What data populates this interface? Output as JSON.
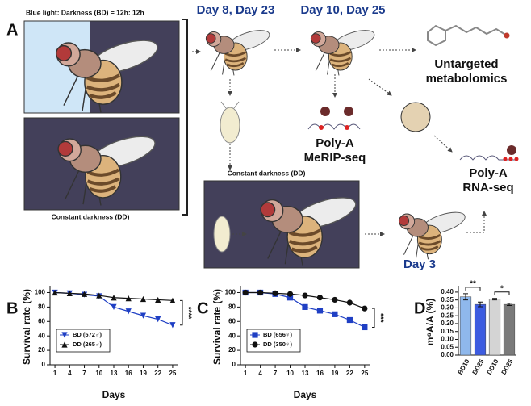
{
  "diagram": {
    "panel_label": "A",
    "bd_condition": "Blue light: Darkness (BD) = 12h: 12h",
    "dd_condition_left": "Constant darkness (DD)",
    "dd_condition_middle": "Constant darkness (DD)",
    "day_early": "Day 8,  Day 23",
    "day_late": "Day 10,  Day 25",
    "day_pupa": "Day 3",
    "metabolomics_label": [
      "Untargeted",
      "metabolomics"
    ],
    "merip_label": [
      "Poly-A",
      "MeRIP-seq"
    ],
    "rnaseq_label": [
      "Poly-A",
      "RNA-seq"
    ]
  },
  "chart_data": [
    {
      "type": "line",
      "panel": "B",
      "xlabel": "Days",
      "ylabel": "Survival rate (%)",
      "x": [
        1,
        4,
        7,
        10,
        13,
        16,
        19,
        22,
        25
      ],
      "xlim": [
        0,
        26
      ],
      "xticks": [
        1,
        4,
        7,
        10,
        13,
        16,
        19,
        22,
        25
      ],
      "ylim": [
        0,
        105
      ],
      "yticks": [
        0,
        20,
        40,
        60,
        80,
        100
      ],
      "legend": "lower left",
      "annotation": "****",
      "series": [
        {
          "name": "BD (572♂)",
          "color": "#1f3fc4",
          "marker": "triangle-down",
          "values": [
            100,
            99,
            97,
            95,
            80,
            74,
            68,
            63,
            55
          ]
        },
        {
          "name": "DD (265♂)",
          "color": "#111111",
          "marker": "triangle-up",
          "values": [
            100,
            99,
            98,
            96,
            93,
            92,
            91,
            90,
            89
          ]
        }
      ]
    },
    {
      "type": "line",
      "panel": "C",
      "xlabel": "Days",
      "ylabel": "Survival rate (%)",
      "x": [
        1,
        4,
        7,
        10,
        13,
        16,
        19,
        22,
        25
      ],
      "xlim": [
        0,
        26
      ],
      "xticks": [
        1,
        4,
        7,
        10,
        13,
        16,
        19,
        22,
        25
      ],
      "ylim": [
        0,
        105
      ],
      "yticks": [
        0,
        20,
        40,
        60,
        80,
        100
      ],
      "legend": "lower left",
      "annotation": "***",
      "series": [
        {
          "name": "BD (656♀)",
          "color": "#1f3fc4",
          "marker": "square",
          "values": [
            100,
            100,
            98,
            93,
            80,
            75,
            70,
            62,
            52
          ]
        },
        {
          "name": "DD (350♀)",
          "color": "#111111",
          "marker": "circle",
          "values": [
            100,
            100,
            99,
            98,
            96,
            93,
            90,
            86,
            78
          ]
        }
      ]
    },
    {
      "type": "bar",
      "panel": "D",
      "ylabel": "m⁶A/A (%)",
      "categories": [
        "BD10",
        "BD25",
        "DD10",
        "DD25"
      ],
      "values": [
        0.37,
        0.322,
        0.355,
        0.322
      ],
      "errors": [
        0.02,
        0.015,
        0.005,
        0.007
      ],
      "colors": [
        "#8fb8ec",
        "#3d5ce0",
        "#d4d4d4",
        "#7a7a7a"
      ],
      "ylim": [
        0,
        0.42
      ],
      "yticks": [
        {
          "value": 0,
          "label": "0.00"
        },
        {
          "value": 0.05,
          "label": "0.05"
        },
        {
          "value": 0.1,
          "label": "0.10"
        },
        {
          "value": 0.15,
          "label": "0.15"
        },
        {
          "value": 0.2,
          "label": "0.20"
        },
        {
          "value": 0.25,
          "label": "0.25"
        },
        {
          "value": 0.3,
          "label": "0.30"
        },
        {
          "value": 0.35,
          "label": "0.35"
        },
        {
          "value": 0.4,
          "label": "0.40"
        }
      ],
      "significance": [
        "**",
        "*"
      ]
    }
  ]
}
